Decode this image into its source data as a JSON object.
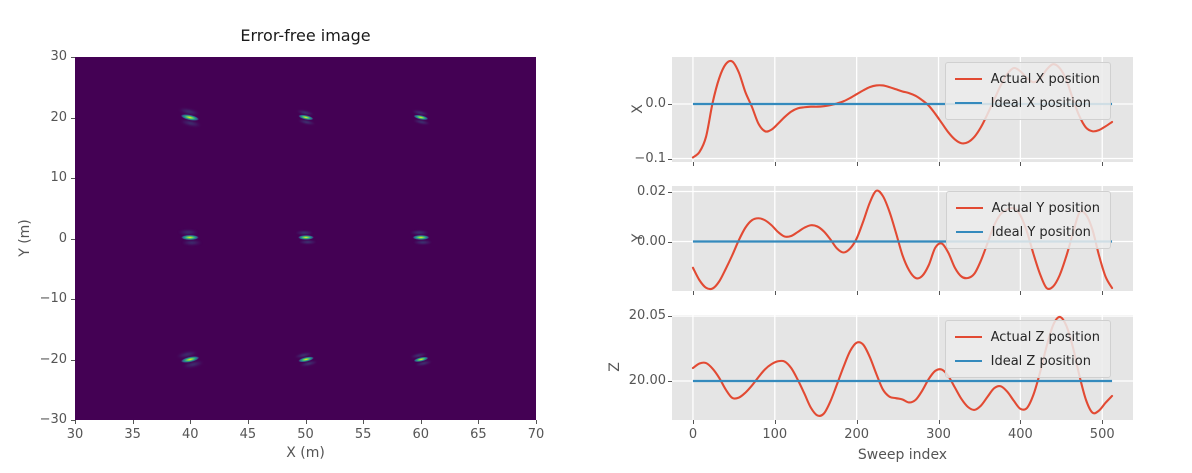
{
  "style": {
    "figure_bg": "#ffffff",
    "axes_bg": "#e5e5e5",
    "grid_color": "#ffffff",
    "tick_color": "#555555",
    "label_color": "#555555",
    "title_color": "#1a1a1a",
    "red": "#e24a33",
    "blue": "#348abd",
    "legend_text": "#262626",
    "image_bg": "#440154",
    "colormap": "viridis"
  },
  "chart_data": [
    {
      "type": "heatmap",
      "title": "Error-free image",
      "xlabel": "X (m)",
      "ylabel": "Y (m)",
      "xlim": [
        30,
        70
      ],
      "ylim": [
        -30,
        30
      ],
      "xticks": [
        30,
        35,
        40,
        45,
        50,
        55,
        60,
        65,
        70
      ],
      "xtick_labels": [
        "30",
        "35",
        "40",
        "45",
        "50",
        "55",
        "60",
        "65",
        "70"
      ],
      "yticks": [
        30,
        20,
        10,
        0,
        -10,
        -20,
        -30
      ],
      "ytick_labels": [
        "30",
        "20",
        "10",
        "0",
        "−10",
        "−20",
        "−30"
      ],
      "grid": false,
      "background_color": "#440154",
      "targets": [
        {
          "x": 40,
          "y": 20.1,
          "tilt": 12,
          "scale": 1.0
        },
        {
          "x": 50,
          "y": 20.1,
          "tilt": 12,
          "scale": 0.82
        },
        {
          "x": 60,
          "y": 20.1,
          "tilt": 12,
          "scale": 0.8
        },
        {
          "x": 40,
          "y": 0.2,
          "tilt": 0,
          "scale": 0.95
        },
        {
          "x": 50,
          "y": 0.2,
          "tilt": 0,
          "scale": 0.85
        },
        {
          "x": 60,
          "y": 0.2,
          "tilt": 0,
          "scale": 0.9
        },
        {
          "x": 40,
          "y": -19.9,
          "tilt": -12,
          "scale": 1.0
        },
        {
          "x": 50,
          "y": -19.9,
          "tilt": -12,
          "scale": 0.85
        },
        {
          "x": 60,
          "y": -19.9,
          "tilt": -12,
          "scale": 0.8
        }
      ]
    },
    {
      "type": "line",
      "ylabel": "X",
      "xlabel": "",
      "x_start": 0,
      "x_step": 8,
      "xlim": [
        -25.6,
        537.6
      ],
      "ylim": [
        -0.1064,
        0.0862
      ],
      "xticks": [
        0,
        100,
        200,
        300,
        400,
        500
      ],
      "xtick_labels": [
        "0",
        "100",
        "200",
        "300",
        "400",
        "500"
      ],
      "show_xtick_labels": false,
      "yticks": [
        0.0,
        -0.1
      ],
      "ytick_labels": [
        "0.0",
        "−0.1"
      ],
      "grid": true,
      "legend_loc": "upper right",
      "series": [
        {
          "name": "Actual X position",
          "color_key": "red",
          "values": [
            -0.098,
            -0.088,
            -0.06,
            0.002,
            0.047,
            0.073,
            0.078,
            0.058,
            0.022,
            -0.005,
            -0.036,
            -0.05,
            -0.047,
            -0.036,
            -0.024,
            -0.014,
            -0.008,
            -0.006,
            -0.005,
            -0.005,
            -0.004,
            -0.002,
            0.001,
            0.005,
            0.011,
            0.018,
            0.025,
            0.031,
            0.034,
            0.034,
            0.031,
            0.027,
            0.023,
            0.02,
            0.015,
            0.007,
            -0.003,
            -0.018,
            -0.035,
            -0.052,
            -0.065,
            -0.072,
            -0.07,
            -0.06,
            -0.042,
            -0.018,
            0.008,
            0.034,
            0.055,
            0.066,
            0.06,
            0.048,
            0.04,
            0.046,
            0.063,
            0.073,
            0.066,
            0.045,
            0.01,
            -0.022,
            -0.043,
            -0.05,
            -0.048,
            -0.041,
            -0.033
          ]
        },
        {
          "name": "Ideal X position",
          "color_key": "blue",
          "constant": 0,
          "x_range": [
            0,
            512
          ]
        }
      ]
    },
    {
      "type": "line",
      "ylabel": "Y",
      "xlabel": "",
      "x_start": 0,
      "x_step": 8,
      "xlim": [
        -25.6,
        537.6
      ],
      "ylim": [
        -0.0198,
        0.0222
      ],
      "xticks": [
        0,
        100,
        200,
        300,
        400,
        500
      ],
      "xtick_labels": [
        "0",
        "100",
        "200",
        "300",
        "400",
        "500"
      ],
      "show_xtick_labels": false,
      "yticks": [
        0.02,
        0.0
      ],
      "ytick_labels": [
        "0.02",
        "0.00"
      ],
      "grid": true,
      "legend_loc": "upper right",
      "series": [
        {
          "name": "Actual Y position",
          "color_key": "red",
          "values": [
            -0.0105,
            -0.0155,
            -0.0185,
            -0.0188,
            -0.016,
            -0.011,
            -0.0055,
            0.0005,
            0.0055,
            0.0085,
            0.0093,
            0.0085,
            0.0065,
            0.0038,
            0.002,
            0.0022,
            0.0038,
            0.0055,
            0.0065,
            0.006,
            0.004,
            0.0008,
            -0.0028,
            -0.0044,
            -0.0028,
            0.0012,
            0.008,
            0.0155,
            0.0203,
            0.0182,
            0.012,
            0.0035,
            -0.0055,
            -0.0115,
            -0.0146,
            -0.0138,
            -0.0095,
            -0.0025,
            -0.0008,
            -0.0045,
            -0.0105,
            -0.014,
            -0.0146,
            -0.0128,
            -0.0075,
            -0.0005,
            0.0065,
            0.011,
            0.0128,
            0.0133,
            0.0105,
            0.004,
            -0.005,
            -0.013,
            -0.0186,
            -0.018,
            -0.0135,
            -0.006,
            0.003,
            0.0115,
            0.0108,
            0.0048,
            -0.0055,
            -0.014,
            -0.0186
          ]
        },
        {
          "name": "Ideal Y position",
          "color_key": "blue",
          "constant": 0,
          "x_range": [
            0,
            512
          ]
        }
      ]
    },
    {
      "type": "line",
      "ylabel": "Z",
      "xlabel": "Sweep index",
      "x_start": 0,
      "x_step": 8,
      "xlim": [
        -25.6,
        537.6
      ],
      "ylim": [
        19.97,
        20.0508
      ],
      "xticks": [
        0,
        100,
        200,
        300,
        400,
        500
      ],
      "xtick_labels": [
        "0",
        "100",
        "200",
        "300",
        "400",
        "500"
      ],
      "show_xtick_labels": true,
      "yticks": [
        20.05,
        20.0
      ],
      "ytick_labels": [
        "20.05",
        "20.00"
      ],
      "grid": true,
      "legend_loc": "upper right",
      "series": [
        {
          "name": "Actual Z position",
          "color_key": "red",
          "values": [
            20.01,
            20.0135,
            20.0138,
            20.0095,
            20.0025,
            19.9935,
            19.987,
            19.9872,
            19.991,
            19.9965,
            20.003,
            20.009,
            20.013,
            20.0152,
            20.015,
            20.01,
            20.001,
            19.9905,
            19.9795,
            19.9735,
            19.975,
            19.9845,
            19.9975,
            20.011,
            20.023,
            20.0295,
            20.028,
            20.0185,
            20.0055,
            19.9935,
            19.988,
            19.9868,
            19.9858,
            19.9835,
            19.9855,
            19.9925,
            20.0015,
            20.0078,
            20.0088,
            20.0038,
            19.995,
            19.9862,
            19.98,
            19.9778,
            19.9812,
            19.988,
            19.9945,
            19.996,
            19.9918,
            19.9848,
            19.9786,
            19.9792,
            19.9895,
            20.0065,
            20.0265,
            20.043,
            20.0493,
            20.0428,
            20.0265,
            20.0045,
            19.9858,
            19.9757,
            19.9772,
            19.9832,
            19.9885
          ]
        },
        {
          "name": "Ideal Z position",
          "color_key": "blue",
          "constant": 20,
          "x_range": [
            0,
            512
          ]
        }
      ]
    }
  ]
}
